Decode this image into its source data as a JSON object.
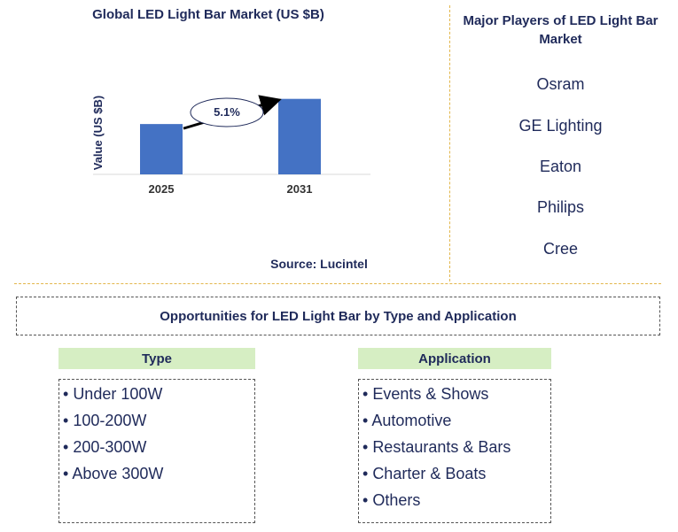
{
  "chart_data": {
    "type": "bar",
    "title": "Global LED Light Bar Market (US $B)",
    "ylabel": "Value (US $B)",
    "xlabel": "",
    "categories": [
      "2025",
      "2031"
    ],
    "values": [
      1.0,
      1.5
    ],
    "ylim": [
      0,
      1.6
    ],
    "grid": false,
    "annotation": "5.1%",
    "colors": {
      "bar": "#4472c4",
      "text": "#1f2a5a"
    }
  },
  "source": "Source: Lucintel",
  "players": {
    "title": "Major Players of LED Light Bar Market",
    "items": [
      "Osram",
      "GE Lighting",
      "Eaton",
      "Philips",
      "Cree"
    ]
  },
  "opportunities": {
    "title": "Opportunities for LED Light Bar by Type and Application",
    "type": {
      "header": "Type",
      "items": [
        "Under 100W",
        "100-200W",
        "200-300W",
        "Above 300W"
      ]
    },
    "application": {
      "header": "Application",
      "items": [
        "Events & Shows",
        "Automotive",
        "Restaurants & Bars",
        "Charter & Boats",
        "Others"
      ]
    }
  },
  "colors": {
    "header_bg": "#d6eec3",
    "divider": "#e2b64a",
    "text": "#1f2a5a"
  }
}
